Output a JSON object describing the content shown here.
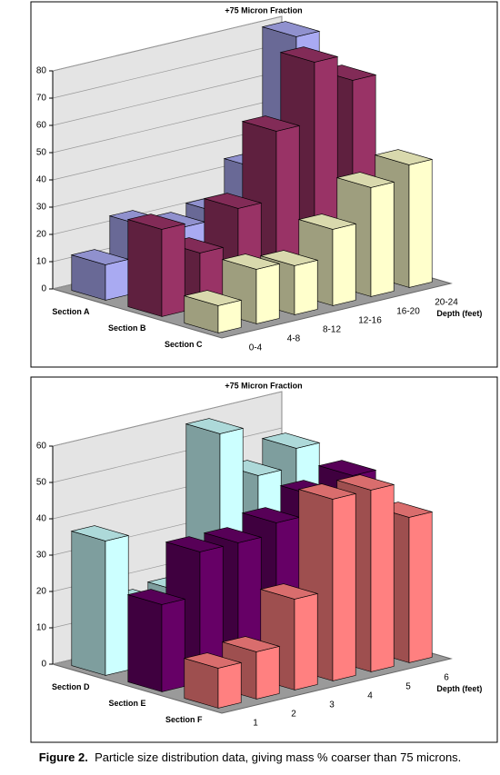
{
  "chart_data": [
    {
      "type": "bar",
      "title": "+75 Micron Fraction",
      "xlabel": "Depth (feet)",
      "categories": [
        "0-4",
        "4-8",
        "8-12",
        "12-16",
        "16-20",
        "20-24"
      ],
      "series": [
        {
          "name": "Section A",
          "color": "#a9aaf2",
          "values": [
            13,
            24,
            20,
            22,
            35,
            80
          ]
        },
        {
          "name": "Section B",
          "color": "#993366",
          "values": [
            32,
            20,
            33,
            58,
            80,
            70
          ]
        },
        {
          "name": "Section C",
          "color": "#ffffcc",
          "values": [
            10,
            20,
            18,
            28,
            40,
            45
          ]
        }
      ],
      "ylim": [
        0,
        80
      ],
      "yticks": [
        0,
        10,
        20,
        30,
        40,
        50,
        60,
        70,
        80
      ],
      "grid": true
    },
    {
      "type": "bar",
      "title": "+75 Micron Fraction",
      "xlabel": "Depth (feet)",
      "categories": [
        "1",
        "2",
        "3",
        "4",
        "5",
        "6"
      ],
      "series": [
        {
          "name": "Section D",
          "color": "#ccffff",
          "values": [
            37,
            17,
            18,
            59,
            45,
            50
          ]
        },
        {
          "name": "Section E",
          "color": "#660066",
          "values": [
            24,
            36,
            36,
            39,
            44,
            47
          ]
        },
        {
          "name": "Section F",
          "color": "#ff8080",
          "values": [
            11,
            13,
            25,
            50,
            50,
            40
          ]
        }
      ],
      "ylim": [
        0,
        60
      ],
      "yticks": [
        0,
        10,
        20,
        30,
        40,
        50,
        60
      ],
      "grid": true
    }
  ],
  "caption": {
    "label": "Figure 2.",
    "text": "Particle size distribution data, giving mass % coarser than 75 microns."
  }
}
